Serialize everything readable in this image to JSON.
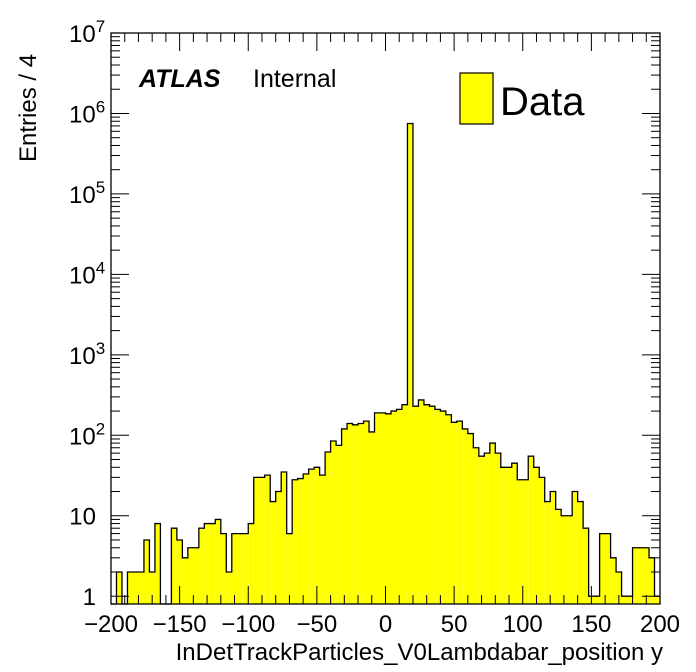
{
  "chart_data": {
    "type": "bar",
    "style": "histogram",
    "yscale": "log",
    "xlabel": "InDetTrackParticles_V0Lambdabar_position y",
    "ylabel": "Entries / 4",
    "xlim": [
      -200,
      200
    ],
    "ylim": [
      0.8,
      10000000
    ],
    "bin_width": 4,
    "grid": false,
    "fill_color": "#ffff00",
    "line_color": "#000000",
    "atlas_label": "ATLAS",
    "atlas_sublabel": "Internal",
    "legend": {
      "position": "top-right",
      "entries": [
        "Data"
      ]
    },
    "x_tick_labels": [
      "−200",
      "−150",
      "−100",
      "−50",
      "0",
      "50",
      "100",
      "150",
      "200"
    ],
    "x_tick_values": [
      -200,
      -150,
      -100,
      -50,
      0,
      50,
      100,
      150,
      200
    ],
    "y_tick_labels": [
      {
        "value": 1,
        "base": "1",
        "exp": ""
      },
      {
        "value": 10,
        "base": "10",
        "exp": ""
      },
      {
        "value": 100,
        "base": "10",
        "exp": "2"
      },
      {
        "value": 1000,
        "base": "10",
        "exp": "3"
      },
      {
        "value": 10000,
        "base": "10",
        "exp": "4"
      },
      {
        "value": 100000,
        "base": "10",
        "exp": "5"
      },
      {
        "value": 1000000,
        "base": "10",
        "exp": "6"
      },
      {
        "value": 10000000,
        "base": "10",
        "exp": "7"
      }
    ],
    "bin_low_edges": [
      -200,
      -196,
      -192,
      -188,
      -184,
      -180,
      -176,
      -172,
      -168,
      -164,
      -160,
      -156,
      -152,
      -148,
      -144,
      -140,
      -136,
      -132,
      -128,
      -124,
      -120,
      -116,
      -112,
      -108,
      -104,
      -100,
      -96,
      -92,
      -88,
      -84,
      -80,
      -76,
      -72,
      -68,
      -64,
      -60,
      -56,
      -52,
      -48,
      -44,
      -40,
      -36,
      -32,
      -28,
      -24,
      -20,
      -16,
      -12,
      -8,
      -4,
      0,
      4,
      8,
      12,
      16,
      20,
      24,
      28,
      32,
      36,
      40,
      44,
      48,
      52,
      56,
      60,
      64,
      68,
      72,
      76,
      80,
      84,
      88,
      92,
      96,
      100,
      104,
      108,
      112,
      116,
      120,
      124,
      128,
      132,
      136,
      140,
      144,
      148,
      152,
      156,
      160,
      164,
      168,
      172,
      176,
      180,
      184,
      188,
      192,
      196
    ],
    "values": [
      0,
      2,
      0,
      2,
      2,
      2,
      5,
      2,
      8,
      0,
      0,
      7,
      5,
      3,
      4,
      4,
      7,
      8,
      8,
      9,
      6,
      2,
      6,
      6,
      6,
      8,
      30,
      30,
      32,
      15,
      20,
      35,
      6,
      28,
      29,
      33,
      38,
      40,
      32,
      62,
      85,
      75,
      120,
      140,
      135,
      140,
      150,
      110,
      190,
      190,
      185,
      200,
      210,
      240,
      750000,
      230,
      275,
      240,
      230,
      210,
      200,
      180,
      145,
      150,
      120,
      105,
      70,
      55,
      60,
      80,
      60,
      40,
      40,
      45,
      28,
      28,
      55,
      40,
      30,
      15,
      20,
      12,
      10,
      10,
      20,
      15,
      7,
      1,
      1,
      6,
      6,
      3,
      2,
      1,
      1,
      4,
      4,
      4,
      3,
      1
    ]
  }
}
